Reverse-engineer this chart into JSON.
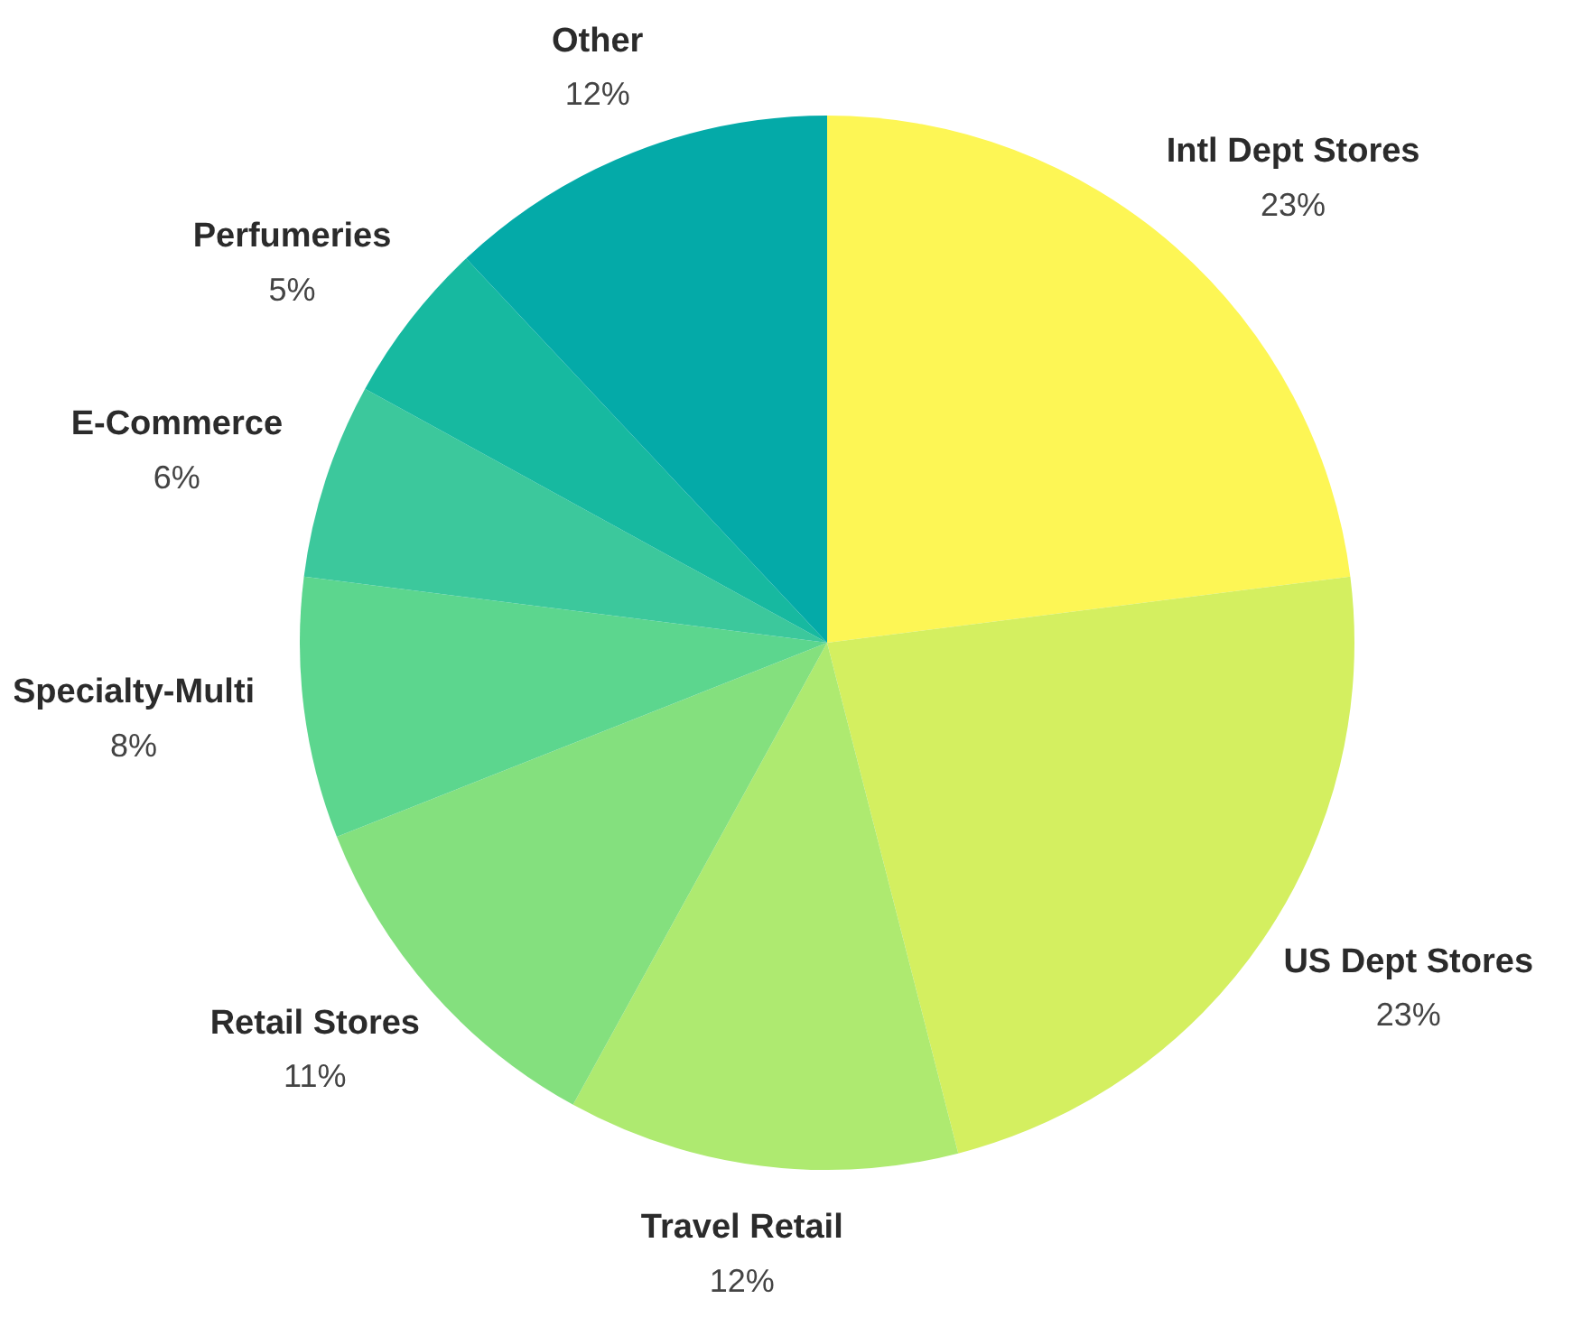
{
  "chart_data": {
    "type": "pie",
    "categories": [
      "Intl Dept Stores",
      "US Dept Stores",
      "Travel Retail",
      "Retail Stores",
      "Specialty-Multi",
      "E-Commerce",
      "Perfumeries",
      "Other"
    ],
    "values": [
      23,
      23,
      12,
      11,
      8,
      6,
      5,
      12
    ],
    "value_labels": [
      "23%",
      "23%",
      "12%",
      "11%",
      "8%",
      "6%",
      "5%",
      "12%"
    ],
    "colors": [
      "#fdf655",
      "#d4ef60",
      "#aeea70",
      "#84e07e",
      "#5cd68e",
      "#3cc89c",
      "#17b9a0",
      "#04aaa8"
    ],
    "legend": false
  }
}
